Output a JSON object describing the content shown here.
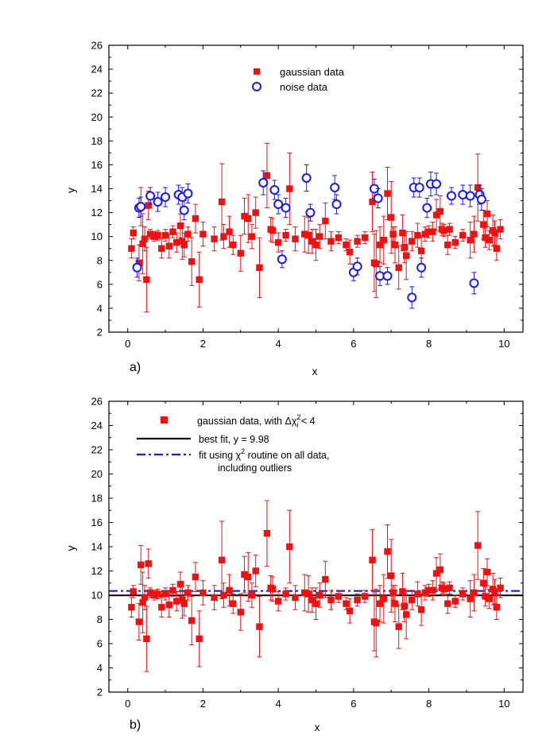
{
  "chart_data": [
    {
      "type": "scatter",
      "panel_label": "a)",
      "xlabel": "x",
      "ylabel": "y",
      "xlim": [
        -0.5,
        10.5
      ],
      "ylim": [
        2,
        26
      ],
      "xticks": [
        0,
        2,
        4,
        6,
        8,
        10
      ],
      "yticks": [
        2,
        4,
        6,
        8,
        10,
        12,
        14,
        16,
        18,
        20,
        22,
        24,
        26
      ],
      "legend": {
        "placement": "top-center",
        "entries": [
          {
            "label": "gaussian data",
            "marker": "filled-square",
            "color": "#ee1111"
          },
          {
            "label": "noise data",
            "marker": "open-circle",
            "color": "#1a1aee"
          }
        ]
      },
      "series": [
        {
          "name": "gaussian data",
          "marker": "filled-square",
          "color": "#ee1111",
          "x": [
            0.1,
            0.15,
            0.3,
            0.35,
            0.4,
            0.45,
            0.5,
            0.55,
            0.6,
            0.7,
            0.8,
            0.9,
            1.0,
            1.1,
            1.2,
            1.3,
            1.4,
            1.45,
            1.5,
            1.6,
            1.7,
            1.8,
            1.9,
            2.0,
            2.3,
            2.5,
            2.55,
            2.7,
            2.8,
            3.0,
            3.1,
            3.2,
            3.3,
            3.4,
            3.5,
            3.7,
            3.8,
            3.85,
            4.0,
            4.2,
            4.3,
            4.45,
            4.7,
            4.8,
            4.9,
            5.0,
            5.1,
            5.25,
            5.4,
            5.6,
            5.8,
            5.9,
            6.1,
            6.3,
            6.5,
            6.55,
            6.6,
            6.7,
            6.8,
            6.9,
            7.0,
            7.05,
            7.1,
            7.2,
            7.3,
            7.35,
            7.4,
            7.55,
            7.7,
            7.8,
            7.9,
            8.0,
            8.1,
            8.2,
            8.3,
            8.35,
            8.4,
            8.5,
            8.55,
            8.7,
            8.9,
            9.1,
            9.2,
            9.3,
            9.45,
            9.5,
            9.55,
            9.6,
            9.7,
            9.75,
            9.8,
            9.9
          ],
          "y": [
            9.0,
            10.3,
            7.8,
            12.5,
            9.4,
            9.8,
            6.4,
            12.6,
            10.2,
            10.0,
            10.1,
            9.0,
            10.1,
            9.2,
            10.4,
            9.5,
            10.9,
            9.6,
            9.3,
            10.2,
            7.9,
            11.5,
            6.4,
            10.2,
            9.8,
            12.9,
            10.0,
            10.4,
            9.3,
            8.6,
            11.7,
            11.5,
            10.0,
            12.0,
            7.4,
            15.1,
            10.6,
            10.5,
            9.5,
            10.1,
            14.0,
            9.8,
            10.2,
            10.1,
            9.6,
            9.3,
            10.0,
            11.3,
            9.6,
            9.9,
            9.3,
            8.7,
            9.6,
            9.9,
            12.9,
            7.8,
            7.7,
            9.3,
            9.7,
            13.6,
            11.6,
            10.2,
            9.3,
            7.4,
            10.3,
            9.1,
            8.4,
            9.6,
            10.1,
            8.8,
            10.2,
            10.4,
            10.4,
            11.8,
            12.1,
            10.6,
            10.5,
            9.3,
            10.6,
            9.5,
            10.1,
            9.7,
            10.2,
            14.1,
            11.0,
            9.9,
            11.9,
            9.7,
            10.5,
            10.3,
            9.0,
            10.6
          ],
          "yerr": [
            0.8,
            0.5,
            1.5,
            1.6,
            2.5,
            1.0,
            2.7,
            1.2,
            0.4,
            0.4,
            0.4,
            0.8,
            0.5,
            1.0,
            0.5,
            0.8,
            1.0,
            1.5,
            1.0,
            0.6,
            2.0,
            1.2,
            2.3,
            1.0,
            1.0,
            3.2,
            1.0,
            1.3,
            0.8,
            1.5,
            1.5,
            2.0,
            1.0,
            1.3,
            2.5,
            2.7,
            1.0,
            1.0,
            0.8,
            0.5,
            3.0,
            1.0,
            1.5,
            1.5,
            1.0,
            1.3,
            1.0,
            1.5,
            0.8,
            0.5,
            0.5,
            1.0,
            0.5,
            0.5,
            2.5,
            2.4,
            2.8,
            1.5,
            2.0,
            2.2,
            3.0,
            0.6,
            1.5,
            1.8,
            1.5,
            1.3,
            2.0,
            0.8,
            1.0,
            1.3,
            0.6,
            0.5,
            0.8,
            1.3,
            1.3,
            0.5,
            0.5,
            0.8,
            0.5,
            0.5,
            0.5,
            1.5,
            1.5,
            2.8,
            1.2,
            0.8,
            1.1,
            0.8,
            1.3,
            1.0,
            1.0,
            0.8
          ]
        },
        {
          "name": "noise data",
          "marker": "open-circle",
          "color": "#1a1aee",
          "x": [
            0.25,
            0.3,
            0.35,
            0.6,
            0.8,
            1.0,
            1.35,
            1.45,
            1.5,
            1.6,
            3.6,
            3.9,
            4.0,
            4.1,
            4.2,
            4.75,
            4.85,
            5.5,
            5.55,
            6.0,
            6.1,
            6.55,
            6.65,
            6.7,
            6.9,
            7.55,
            7.6,
            7.75,
            7.8,
            7.95,
            8.05,
            8.2,
            8.6,
            8.9,
            9.1,
            9.2,
            9.35,
            9.4
          ],
          "y": [
            7.4,
            12.4,
            12.5,
            13.4,
            12.9,
            13.3,
            13.5,
            13.3,
            12.2,
            13.6,
            14.5,
            13.9,
            12.7,
            8.1,
            12.4,
            14.9,
            12.0,
            14.1,
            12.7,
            7.0,
            7.5,
            14.0,
            13.2,
            6.7,
            6.7,
            4.9,
            14.1,
            14.1,
            7.4,
            12.4,
            14.4,
            14.4,
            13.4,
            13.5,
            13.4,
            6.1,
            13.5,
            13.1
          ],
          "yerr": [
            0.8,
            0.8,
            0.8,
            0.7,
            0.8,
            0.8,
            0.8,
            0.8,
            0.8,
            0.8,
            1.0,
            0.8,
            0.8,
            0.7,
            0.8,
            1.1,
            0.7,
            1.0,
            0.8,
            0.7,
            0.7,
            0.8,
            0.8,
            0.8,
            0.7,
            0.9,
            0.8,
            0.8,
            0.8,
            0.8,
            1.0,
            0.9,
            0.7,
            0.8,
            0.9,
            0.9,
            0.8,
            0.9
          ]
        }
      ]
    },
    {
      "type": "scatter",
      "panel_label": "b)",
      "xlabel": "x",
      "ylabel": "y",
      "xlim": [
        -0.5,
        10.5
      ],
      "ylim": [
        2,
        26
      ],
      "xticks": [
        0,
        2,
        4,
        6,
        8,
        10
      ],
      "yticks": [
        2,
        4,
        6,
        8,
        10,
        12,
        14,
        16,
        18,
        20,
        22,
        24,
        26
      ],
      "legend": {
        "placement": "top-left",
        "entries": [
          {
            "label_main": "gaussian data, with   Δχ",
            "sup": "2",
            "sub": "i",
            "label_tail": " < 4",
            "marker": "filled-square",
            "color": "#ee1111"
          },
          {
            "label_main": "best fit, y = 9.98",
            "marker": "solid-line",
            "color": "#000000"
          },
          {
            "label_main": "fit using  χ",
            "sup": "2",
            "label_tail": " routine on all data,",
            "line2": "including outliers",
            "marker": "dash-dot-line",
            "color": "#1a1aee"
          }
        ]
      },
      "fit_lines": [
        {
          "name": "best fit",
          "y": 9.98,
          "style": "solid",
          "color": "#000000"
        },
        {
          "name": "fit using chi2 routine on all data",
          "y": 10.35,
          "style": "dash-dot",
          "color": "#1a1aee"
        }
      ],
      "series_ref": "gaussian data"
    }
  ]
}
